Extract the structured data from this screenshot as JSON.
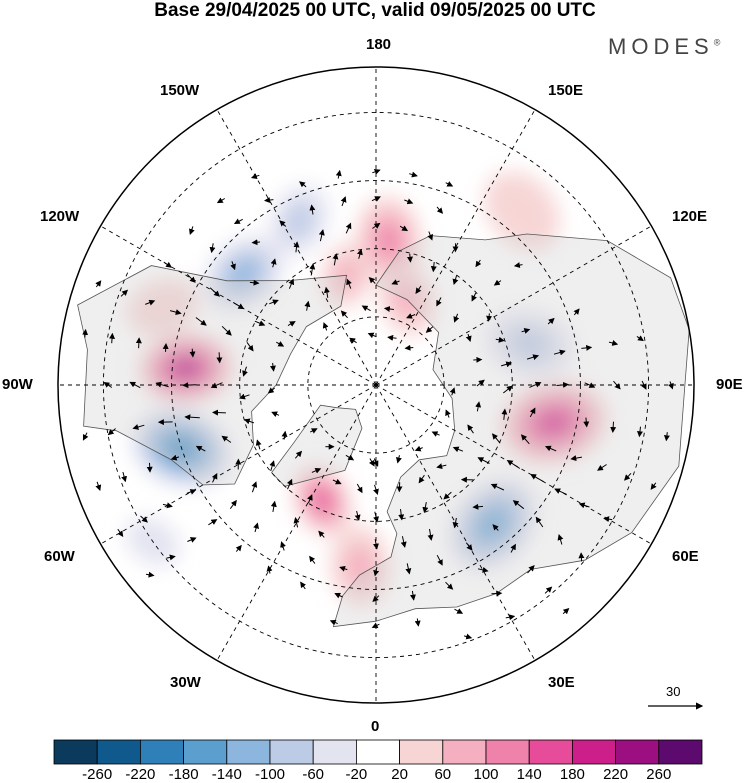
{
  "title": "Base 29/04/2025 00 UTC, valid 09/05/2025 00 UTC",
  "brand": "MODES",
  "brand_mark": "®",
  "longitude_labels": {
    "top": "180",
    "top_left": "150W",
    "top_right": "150E",
    "upper_left": "120W",
    "upper_right": "120E",
    "left": "90W",
    "right": "90E",
    "lower_left": "60W",
    "lower_right": "60E",
    "bottom_left": "30W",
    "bottom_right": "30E",
    "bottom": "0"
  },
  "reference_vector": "30",
  "colorbar": {
    "colors": [
      "#0b3a5c",
      "#10598c",
      "#2f80b8",
      "#5b9fcf",
      "#8db6de",
      "#bccbe6",
      "#e4e4f1",
      "#ffffff",
      "#f7d5d5",
      "#f4b0c0",
      "#ef82ab",
      "#e64c9a",
      "#cc1f8a",
      "#9c0f80",
      "#5c0a6e"
    ],
    "labels": [
      "-260",
      "-220",
      "-180",
      "-140",
      "-100",
      "-60",
      "-20",
      "20",
      "60",
      "100",
      "140",
      "180",
      "220",
      "260"
    ]
  },
  "anomaly_centers": [
    {
      "lon": -95,
      "lat": 48,
      "value": 240,
      "radius": 0.13
    },
    {
      "lon": -72,
      "lat": 45,
      "value": -200,
      "radius": 0.14
    },
    {
      "lon": -130,
      "lat": 52,
      "value": -150,
      "radius": 0.12
    },
    {
      "lon": -155,
      "lat": 50,
      "value": -90,
      "radius": 0.1
    },
    {
      "lon": 175,
      "lat": 58,
      "value": 130,
      "radius": 0.12
    },
    {
      "lon": 160,
      "lat": 70,
      "value": 90,
      "radius": 0.1
    },
    {
      "lon": -165,
      "lat": 65,
      "value": 80,
      "radius": 0.09
    },
    {
      "lon": 105,
      "lat": 55,
      "value": -110,
      "radius": 0.12
    },
    {
      "lon": 78,
      "lat": 50,
      "value": 200,
      "radius": 0.15
    },
    {
      "lon": 40,
      "lat": 50,
      "value": -190,
      "radius": 0.14
    },
    {
      "lon": -5,
      "lat": 50,
      "value": 110,
      "radius": 0.11
    },
    {
      "lon": -25,
      "lat": 62,
      "value": 170,
      "radius": 0.1
    },
    {
      "lon": -110,
      "lat": 40,
      "value": 60,
      "radius": 0.1
    },
    {
      "lon": -55,
      "lat": 30,
      "value": -70,
      "radius": 0.08
    },
    {
      "lon": 140,
      "lat": 40,
      "value": 40,
      "radius": 0.12
    }
  ]
}
